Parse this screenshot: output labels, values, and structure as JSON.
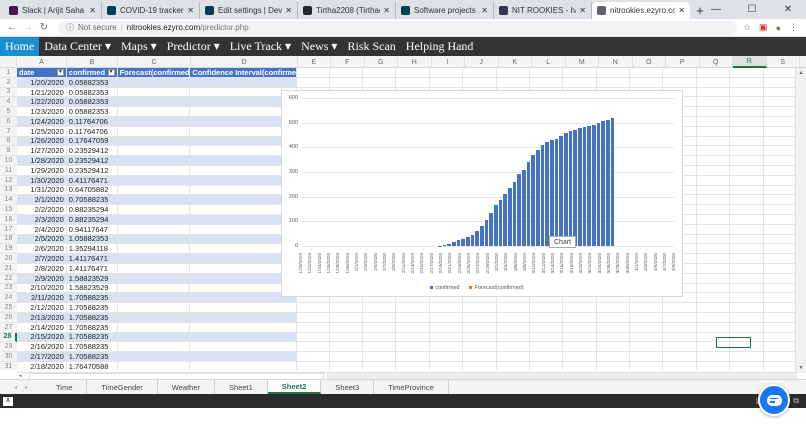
{
  "browser": {
    "tabs": [
      {
        "title": "Slack | Arijit Saha Ray, |",
        "icon": "slack-icon",
        "color": "#4a154b",
        "active": false
      },
      {
        "title": "COVID-19 tracker | Dev",
        "icon": "devpost-icon",
        "color": "#003e54",
        "active": false
      },
      {
        "title": "Edit settings | Devpost",
        "icon": "devpost-icon",
        "color": "#003e54",
        "active": false
      },
      {
        "title": "Tirtha2208 (Tirthadeep",
        "icon": "github-icon",
        "color": "#24292e",
        "active": false
      },
      {
        "title": "Software projects from",
        "icon": "devpost-icon",
        "color": "#003e54",
        "active": false
      },
      {
        "title": "NIT ROOKIES - hackCC",
        "icon": "hackerearth-icon",
        "color": "#323754",
        "active": false
      },
      {
        "title": "nitrookies.ezyro.com/p",
        "icon": "globe-icon",
        "color": "#5f6368",
        "active": true
      }
    ],
    "new_tab": "+",
    "window_controls": {
      "minimize": "—",
      "maximize": "☐",
      "close": "✕"
    },
    "address": {
      "security": "Not secure",
      "host": "nitrookies.ezyro.com",
      "path": "/predictor.php"
    }
  },
  "sitenav": {
    "items": [
      {
        "label": "Home",
        "active": true
      },
      {
        "label": "Data Center ▾"
      },
      {
        "label": "Maps ▾"
      },
      {
        "label": "Predictor ▾"
      },
      {
        "label": "Live Track ▾"
      },
      {
        "label": "News ▾"
      },
      {
        "label": "Risk Scan"
      },
      {
        "label": "Helping Hand"
      }
    ]
  },
  "sheet": {
    "columns": [
      "A",
      "B",
      "C",
      "D",
      "E",
      "F",
      "G",
      "H",
      "I",
      "J",
      "K",
      "L",
      "M",
      "N",
      "O",
      "P",
      "Q",
      "R",
      "S"
    ],
    "selected_column": "R",
    "selected_row": 28,
    "header": [
      "date",
      "confirmed",
      "Forecast(confirmed)",
      "Confidence Interval(confirmed)"
    ],
    "rows": [
      [
        "1/20/2020",
        "0.05882353"
      ],
      [
        "1/21/2020",
        "0.05882353"
      ],
      [
        "1/22/2020",
        "0.05882353"
      ],
      [
        "1/23/2020",
        "0.05882353"
      ],
      [
        "1/24/2020",
        "0.11764706"
      ],
      [
        "1/25/2020",
        "0.11764706"
      ],
      [
        "1/26/2020",
        "0.17647059"
      ],
      [
        "1/27/2020",
        "0.23529412"
      ],
      [
        "1/28/2020",
        "0.23529412"
      ],
      [
        "1/29/2020",
        "0.23529412"
      ],
      [
        "1/30/2020",
        "0.41176471"
      ],
      [
        "1/31/2020",
        "0.64705882"
      ],
      [
        "2/1/2020",
        "0.70588235"
      ],
      [
        "2/2/2020",
        "0.88235294"
      ],
      [
        "2/3/2020",
        "0.88235294"
      ],
      [
        "2/4/2020",
        "0.94117647"
      ],
      [
        "2/5/2020",
        "1.05882353"
      ],
      [
        "2/6/2020",
        "1.35294118"
      ],
      [
        "2/7/2020",
        "1.41176471"
      ],
      [
        "2/8/2020",
        "1.41176471"
      ],
      [
        "2/9/2020",
        "1.58823529"
      ],
      [
        "2/10/2020",
        "1.58823529"
      ],
      [
        "2/11/2020",
        "1.70588235"
      ],
      [
        "2/12/2020",
        "1.70588235"
      ],
      [
        "2/13/2020",
        "1.70588235"
      ],
      [
        "2/14/2020",
        "1.70588235"
      ],
      [
        "2/15/2020",
        "1.70588235"
      ],
      [
        "2/16/2020",
        "1.70588235"
      ],
      [
        "2/17/2020",
        "1.70588235"
      ],
      [
        "2/18/2020",
        "1.76470588"
      ]
    ],
    "sheet_tabs": [
      "Time",
      "TimeGender",
      "Weather",
      "Sheet1",
      "Sheet2",
      "Sheet3",
      "TimeProvince"
    ],
    "active_sheet": "Sheet2"
  },
  "tooltip": "Chart",
  "chart_data": {
    "type": "bar",
    "title": "",
    "xlabel": "",
    "ylabel": "",
    "ylim": [
      0,
      600
    ],
    "yticks": [
      0,
      100,
      200,
      300,
      400,
      500,
      600
    ],
    "grid": true,
    "legend_position": "bottom",
    "x_tick_labels": [
      "1/20/2020",
      "1/22/2020",
      "1/24/2020",
      "1/26/2020",
      "1/28/2020",
      "1/30/2020",
      "2/1/2020",
      "2/3/2020",
      "2/5/2020",
      "2/7/2020",
      "2/9/2020",
      "2/11/2020",
      "2/13/2020",
      "2/15/2020",
      "2/17/2020",
      "2/19/2020",
      "2/21/2020",
      "2/23/2020",
      "2/25/2020",
      "2/27/2020",
      "2/29/2020",
      "3/2/2020",
      "3/4/2020",
      "3/6/2020",
      "3/8/2020",
      "3/10/2020",
      "3/12/2020",
      "3/14/2020",
      "3/16/2020",
      "3/18/2020",
      "3/20/2020",
      "3/22/2020",
      "3/24/2020",
      "3/26/2020",
      "3/28/2020",
      "3/30/2020",
      "4/1/2020",
      "4/3/2020",
      "4/5/2020",
      "4/7/2020",
      "4/9/2020"
    ],
    "series": [
      {
        "name": "confirmed",
        "color": "#4472c4",
        "start_date": "2/19/2020",
        "values": [
          2,
          5,
          10,
          18,
          25,
          30,
          35,
          45,
          60,
          80,
          105,
          135,
          165,
          185,
          210,
          235,
          260,
          290,
          310,
          340,
          370,
          390,
          410,
          420,
          430,
          435,
          445,
          458,
          465,
          470,
          478,
          482,
          488,
          492,
          498,
          505,
          512,
          520
        ]
      },
      {
        "name": "Forecast(confirmed)",
        "color": "#ed7d31",
        "values": []
      }
    ]
  }
}
